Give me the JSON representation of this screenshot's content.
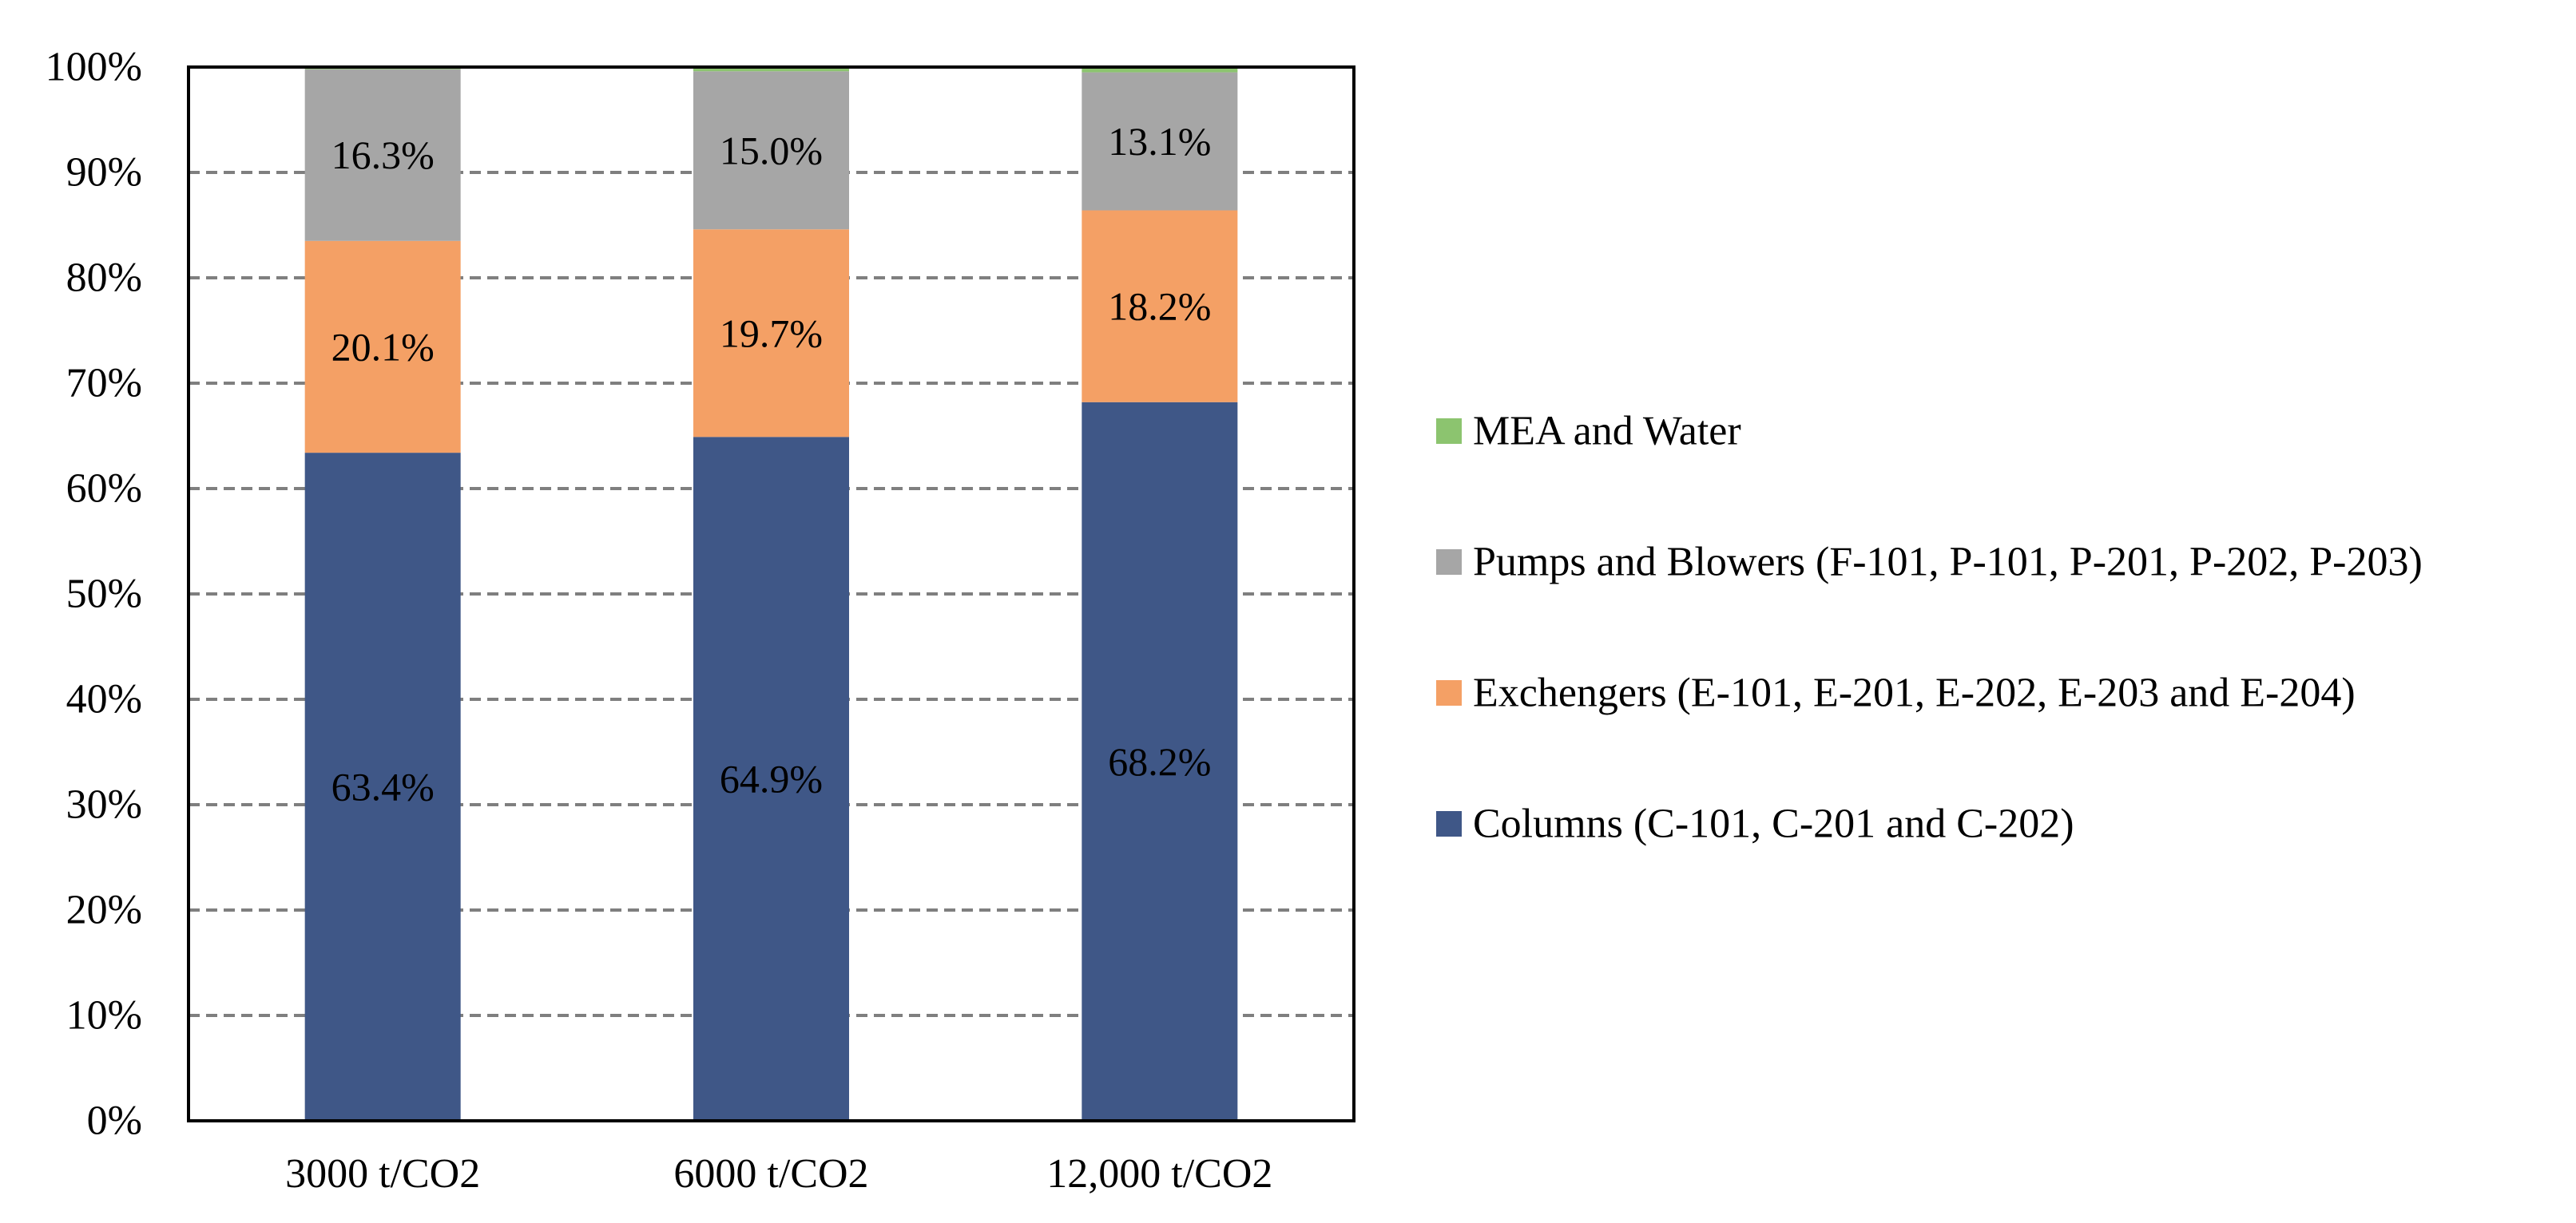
{
  "chart_data": {
    "type": "bar",
    "stacked": true,
    "percent": true,
    "categories": [
      "3000 t/CO2",
      "6000 t/CO2",
      "12,000 t/CO2"
    ],
    "series": [
      {
        "name": "Columns (C-101, C-201 and C-202)",
        "color": "#3f5787",
        "values": [
          63.4,
          64.9,
          68.2
        ],
        "labels": [
          "63.4%",
          "64.9%",
          "68.2%"
        ]
      },
      {
        "name": "Exchengers (E-101, E-201, E-202, E-203 and E-204)",
        "color": "#f4a065",
        "values": [
          20.1,
          19.7,
          18.2
        ],
        "labels": [
          "20.1%",
          "19.7%",
          "18.2%"
        ]
      },
      {
        "name": "Pumps and Blowers (F-101, P-101, P-201, P-202, P-203)",
        "color": "#a6a6a6",
        "values": [
          16.3,
          15.0,
          13.1
        ],
        "labels": [
          "16.3%",
          "15.0%",
          "13.1%"
        ]
      },
      {
        "name": "MEA and Water",
        "color": "#8cc46f",
        "values": [
          0.2,
          0.4,
          0.5
        ],
        "labels": [
          "",
          "",
          ""
        ]
      }
    ],
    "yticks": [
      "0%",
      "10%",
      "20%",
      "30%",
      "40%",
      "50%",
      "60%",
      "70%",
      "80%",
      "90%",
      "100%"
    ],
    "ylim": [
      0,
      100
    ],
    "grid": true,
    "legend_position": "right",
    "title": "",
    "xlabel": "",
    "ylabel": ""
  }
}
